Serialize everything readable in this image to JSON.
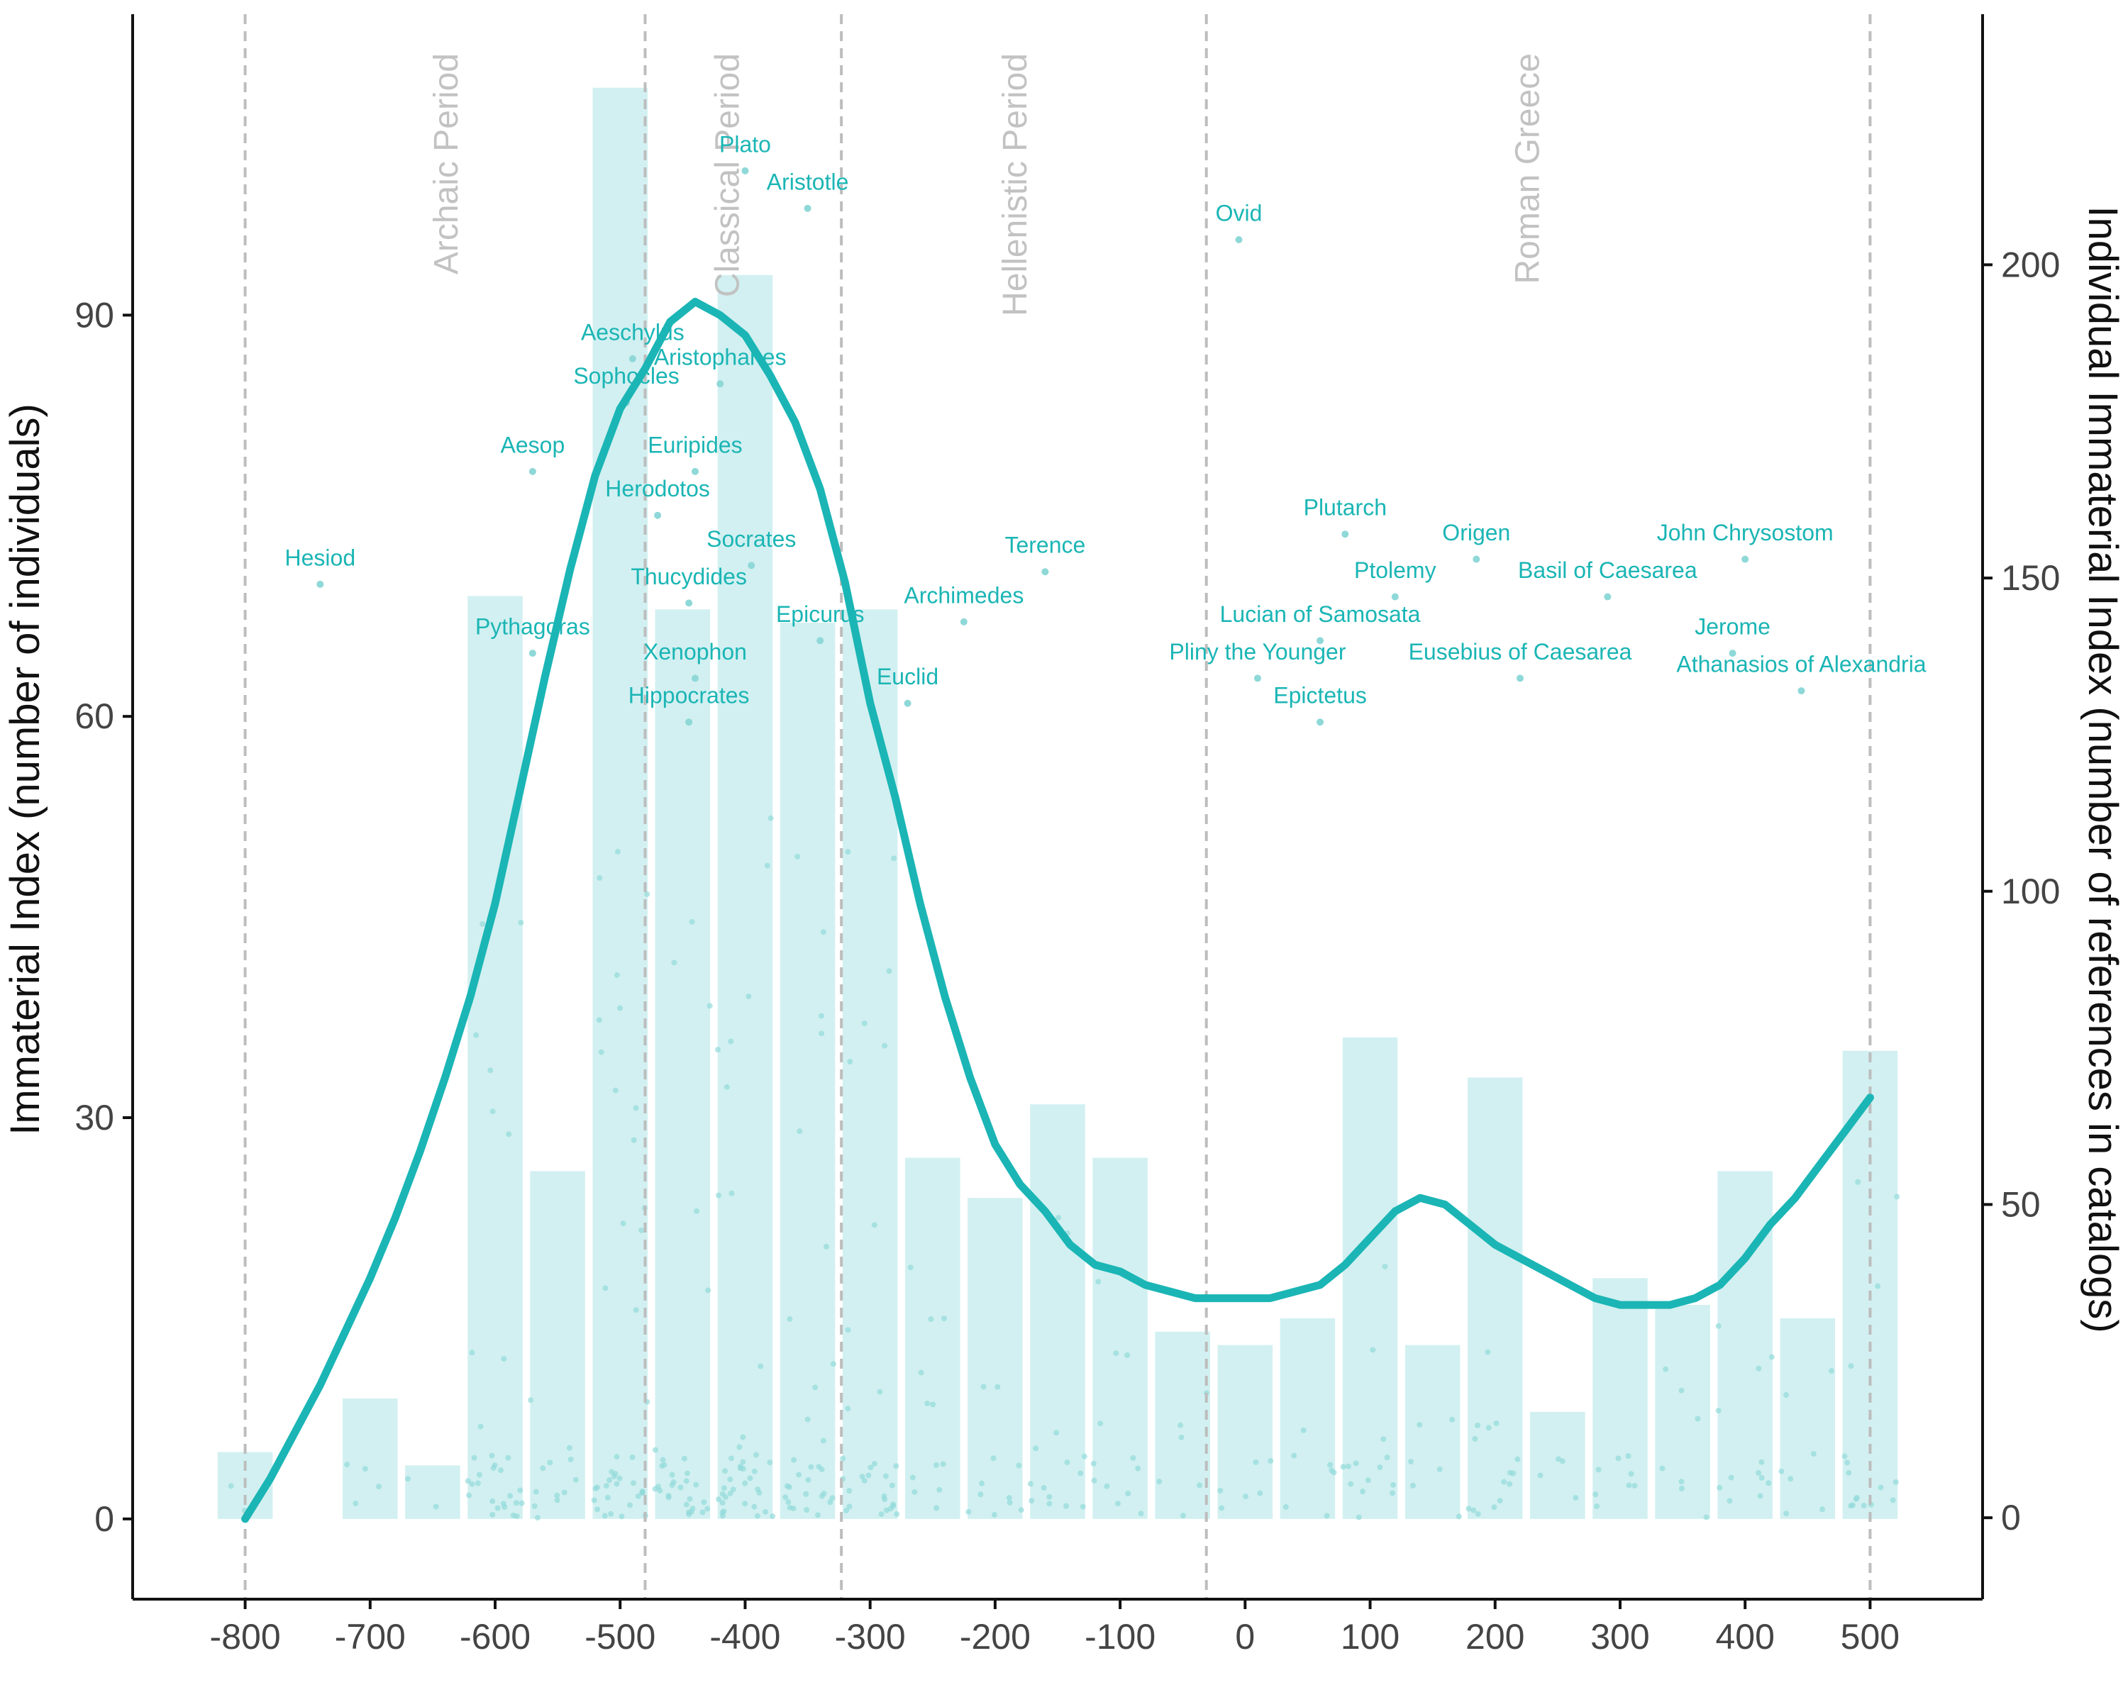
{
  "colors": {
    "accent": "#1bb5b5",
    "bar_fill": "#d2f0f1",
    "point_fill": "#8fd8d8",
    "period_line": "#bdbdbd",
    "period_text": "#c2c2c2",
    "axis": "#111111"
  },
  "chart_data": {
    "type": "bar",
    "title": "",
    "xlabel": "",
    "ylabel": "Immaterial Index (number of individuals)",
    "ylabel_right": "Individual Immaterial Index (number of references in catalogs)",
    "xlim": [
      -890,
      590
    ],
    "ylim": [
      -6,
      112.5
    ],
    "ylim_right": [
      -13,
      240
    ],
    "x_ticks": [
      -800,
      -700,
      -600,
      -500,
      -400,
      -300,
      -200,
      -100,
      0,
      100,
      200,
      300,
      400,
      500
    ],
    "y_ticks": [
      0,
      30,
      60,
      90
    ],
    "y_ticks_right": [
      0,
      50,
      100,
      150,
      200
    ],
    "grid": false,
    "legend": "none",
    "bars": {
      "width": 44,
      "x": [
        -800,
        -750,
        -700,
        -650,
        -600,
        -550,
        -500,
        -450,
        -400,
        -350,
        -300,
        -250,
        -200,
        -150,
        -100,
        -50,
        0,
        50,
        100,
        150,
        200,
        250,
        300,
        350,
        400,
        450,
        500
      ],
      "values": [
        5,
        0,
        9,
        4,
        69,
        26,
        107,
        68,
        93,
        67,
        68,
        27,
        24,
        31,
        27,
        14,
        13,
        15,
        36,
        13,
        33,
        8,
        18,
        16,
        26,
        15,
        35
      ]
    },
    "smooth_line": {
      "x": [
        -800,
        -780,
        -760,
        -740,
        -720,
        -700,
        -680,
        -660,
        -640,
        -620,
        -600,
        -580,
        -560,
        -540,
        -520,
        -500,
        -480,
        -460,
        -440,
        -420,
        -400,
        -380,
        -360,
        -340,
        -320,
        -300,
        -280,
        -260,
        -240,
        -220,
        -200,
        -180,
        -160,
        -140,
        -120,
        -100,
        -80,
        -60,
        -40,
        -20,
        0,
        20,
        40,
        60,
        80,
        100,
        120,
        140,
        160,
        180,
        200,
        220,
        240,
        260,
        280,
        300,
        320,
        340,
        360,
        380,
        400,
        420,
        440,
        460,
        480,
        500
      ],
      "values": [
        0,
        3,
        6.5,
        10,
        14,
        18,
        22.5,
        27.5,
        33,
        39,
        46,
        54.5,
        63,
        71,
        78,
        83,
        86,
        89.5,
        91,
        90,
        88.5,
        85.5,
        82,
        77,
        70,
        61,
        54,
        46,
        39,
        33,
        28,
        25,
        23,
        20.5,
        19,
        18.5,
        17.5,
        17,
        16.5,
        16.5,
        16.5,
        16.5,
        17,
        17.5,
        19,
        21,
        23,
        24,
        23.5,
        22,
        20.5,
        19.5,
        18.5,
        17.5,
        16.5,
        16,
        16,
        16,
        16.5,
        17.5,
        19.5,
        22,
        24,
        26.5,
        29,
        31.5
      ]
    },
    "period_lines": [
      -800,
      -480,
      -323,
      -31,
      500
    ],
    "periods": [
      {
        "name": "Archaic Period",
        "x": -630
      },
      {
        "name": "Classical Period",
        "x": -405
      },
      {
        "name": "Hellenistic Period",
        "x": -175
      },
      {
        "name": "Roman Greece",
        "x": 235
      }
    ],
    "individuals": [
      {
        "name": "Plato",
        "x": -400,
        "y": 218
      },
      {
        "name": "Aristotle",
        "x": -350,
        "y": 212
      },
      {
        "name": "Ovid",
        "x": -5,
        "y": 207
      },
      {
        "name": "Aeschylus",
        "x": -490,
        "y": 188
      },
      {
        "name": "Aristophanes",
        "x": -420,
        "y": 184
      },
      {
        "name": "Sophocles",
        "x": -495,
        "y": 181
      },
      {
        "name": "Aesop",
        "x": -570,
        "y": 170
      },
      {
        "name": "Euripides",
        "x": -440,
        "y": 170
      },
      {
        "name": "Herodotos",
        "x": -470,
        "y": 163
      },
      {
        "name": "Plutarch",
        "x": 80,
        "y": 160
      },
      {
        "name": "Origen",
        "x": 185,
        "y": 156
      },
      {
        "name": "John Chrysostom",
        "x": 400,
        "y": 156
      },
      {
        "name": "Socrates",
        "x": -395,
        "y": 155
      },
      {
        "name": "Terence",
        "x": -160,
        "y": 154
      },
      {
        "name": "Hesiod",
        "x": -740,
        "y": 152
      },
      {
        "name": "Basil of Caesarea",
        "x": 290,
        "y": 150
      },
      {
        "name": "Ptolemy",
        "x": 120,
        "y": 150
      },
      {
        "name": "Thucydides",
        "x": -445,
        "y": 149
      },
      {
        "name": "Archimedes",
        "x": -225,
        "y": 146
      },
      {
        "name": "Lucian of Samosata",
        "x": 60,
        "y": 143
      },
      {
        "name": "Epicurus",
        "x": -340,
        "y": 143
      },
      {
        "name": "Jerome",
        "x": 390,
        "y": 141
      },
      {
        "name": "Pythagoras",
        "x": -570,
        "y": 141
      },
      {
        "name": "Xenophon",
        "x": -440,
        "y": 137
      },
      {
        "name": "Pliny the Younger",
        "x": 10,
        "y": 137
      },
      {
        "name": "Eusebius of Caesarea",
        "x": 220,
        "y": 137
      },
      {
        "name": "Athanasios of Alexandria",
        "x": 445,
        "y": 135
      },
      {
        "name": "Euclid",
        "x": -270,
        "y": 133
      },
      {
        "name": "Hippocrates",
        "x": -445,
        "y": 130
      },
      {
        "name": "Epictetus",
        "x": 60,
        "y": 130
      }
    ]
  }
}
